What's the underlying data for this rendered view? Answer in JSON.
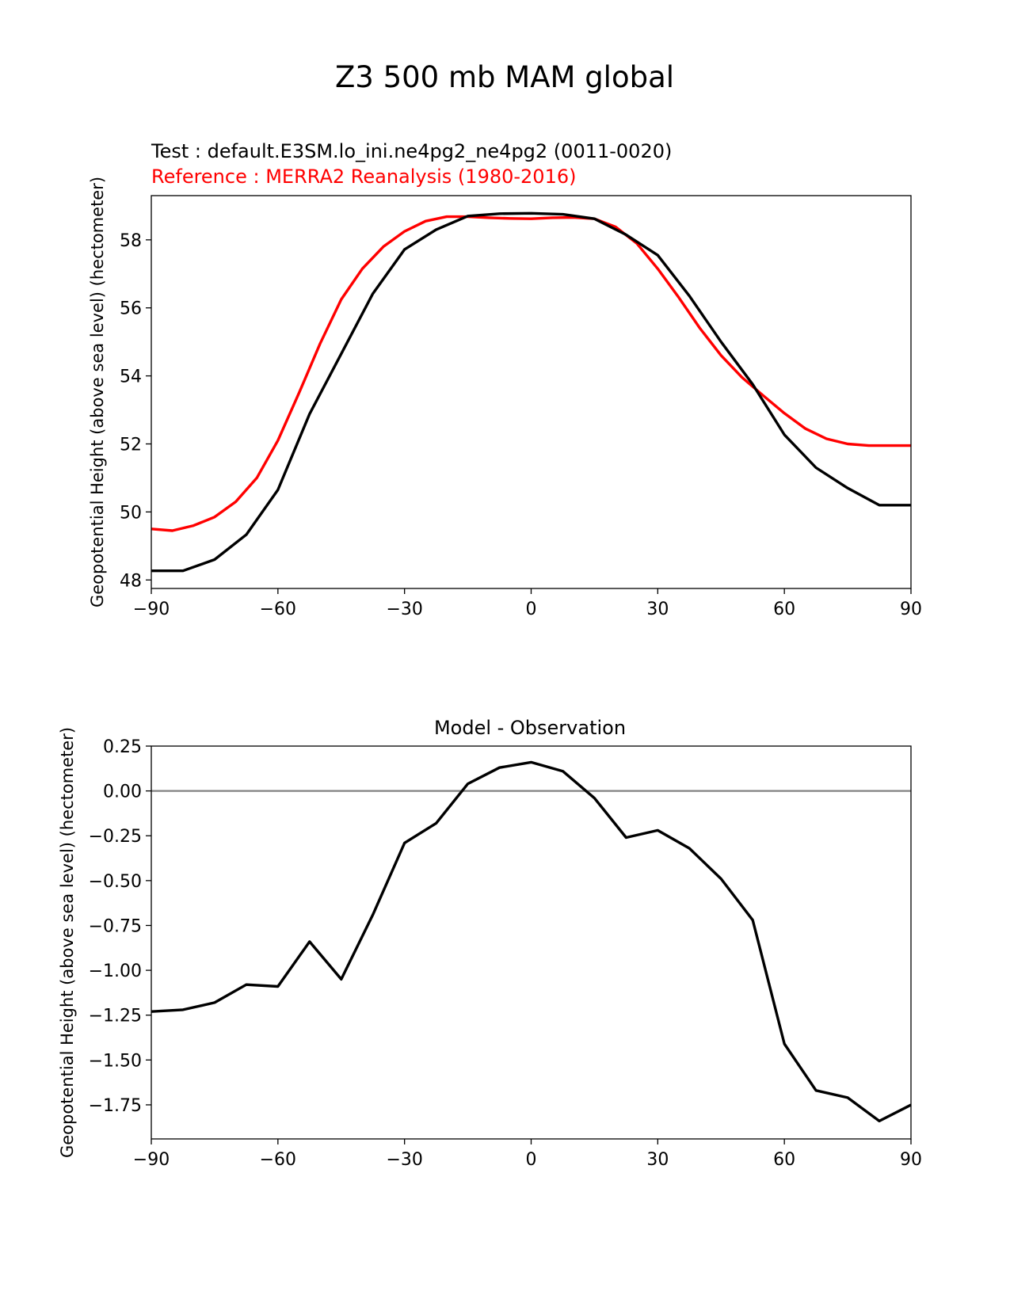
{
  "figure": {
    "title": "Z3 500 mb MAM global"
  },
  "chart_data": [
    {
      "type": "line",
      "test_label": "Test : default.E3SM.lo_ini.ne4pg2_ne4pg2 (0011-0020)",
      "reference_label": "Reference : MERRA2 Reanalysis (1980-2016)",
      "ylabel": "Geopotential Height (above sea level) (hectometer)",
      "xlabel": "",
      "xlim": [
        -90,
        90
      ],
      "ylim": [
        47.75,
        59.3
      ],
      "xticks": [
        -90,
        -60,
        -30,
        0,
        30,
        60,
        90
      ],
      "xtick_labels": [
        "−90",
        "−60",
        "−30",
        "0",
        "30",
        "60",
        "90"
      ],
      "yticks": [
        48,
        50,
        52,
        54,
        56,
        58
      ],
      "ytick_labels": [
        "48",
        "50",
        "52",
        "54",
        "56",
        "58"
      ],
      "series": [
        {
          "color": "#ff0000",
          "x": [
            -90,
            -85,
            -80,
            -75,
            -70,
            -65,
            -60,
            -55,
            -50,
            -45,
            -40,
            -35,
            -30,
            -25,
            -20,
            -15,
            -10,
            -5,
            0,
            5,
            10,
            15,
            20,
            25,
            30,
            35,
            40,
            45,
            50,
            55,
            60,
            65,
            70,
            75,
            80,
            85,
            90
          ],
          "y": [
            49.5,
            49.45,
            49.6,
            49.85,
            50.3,
            51.0,
            52.1,
            53.5,
            54.95,
            56.25,
            57.15,
            57.8,
            58.25,
            58.55,
            58.68,
            58.68,
            58.65,
            58.63,
            58.62,
            58.65,
            58.66,
            58.62,
            58.38,
            57.9,
            57.15,
            56.3,
            55.4,
            54.6,
            53.95,
            53.42,
            52.9,
            52.45,
            52.15,
            52.0,
            51.95,
            51.95,
            51.95
          ]
        },
        {
          "color": "#000000",
          "x": [
            -90,
            -82.5,
            -75,
            -67.5,
            -60,
            -52.5,
            -45,
            -37.5,
            -30,
            -22.5,
            -15,
            -7.5,
            0,
            7.5,
            15,
            22.5,
            30,
            37.5,
            45,
            52.5,
            60,
            67.5,
            75,
            82.5,
            90
          ],
          "y": [
            48.27,
            48.27,
            48.6,
            49.33,
            50.65,
            52.88,
            54.65,
            56.42,
            57.72,
            58.3,
            58.7,
            58.77,
            58.78,
            58.75,
            58.62,
            58.15,
            57.55,
            56.35,
            55.0,
            53.75,
            52.27,
            51.3,
            50.7,
            50.2,
            50.2
          ]
        }
      ]
    },
    {
      "type": "line",
      "title": "Model - Observation",
      "ylabel": "Geopotential Height (above sea level) (hectometer)",
      "xlabel": "",
      "xlim": [
        -90,
        90
      ],
      "ylim": [
        -1.94,
        0.25
      ],
      "xticks": [
        -90,
        -60,
        -30,
        0,
        30,
        60,
        90
      ],
      "xtick_labels": [
        "−90",
        "−60",
        "−30",
        "0",
        "30",
        "60",
        "90"
      ],
      "yticks": [
        0.25,
        0.0,
        -0.25,
        -0.5,
        -0.75,
        -1.0,
        -1.25,
        -1.5,
        -1.75
      ],
      "ytick_labels": [
        "0.25",
        "0.00",
        "−0.25",
        "−0.50",
        "−0.75",
        "−1.00",
        "−1.25",
        "−1.50",
        "−1.75"
      ],
      "zero_line": true,
      "zero_line_color": "#808080",
      "series": [
        {
          "color": "#000000",
          "x": [
            -90,
            -82.5,
            -75,
            -67.5,
            -60,
            -52.5,
            -45,
            -37.5,
            -30,
            -22.5,
            -15,
            -7.5,
            0,
            7.5,
            15,
            22.5,
            30,
            37.5,
            45,
            52.5,
            60,
            67.5,
            75,
            82.5,
            90
          ],
          "y": [
            -1.23,
            -1.22,
            -1.18,
            -1.08,
            -1.09,
            -0.84,
            -1.05,
            -0.69,
            -0.29,
            -0.18,
            0.04,
            0.13,
            0.16,
            0.11,
            -0.04,
            -0.26,
            -0.22,
            -0.32,
            -0.49,
            -0.72,
            -1.41,
            -1.67,
            -1.71,
            -1.84,
            -1.75
          ]
        }
      ]
    }
  ]
}
